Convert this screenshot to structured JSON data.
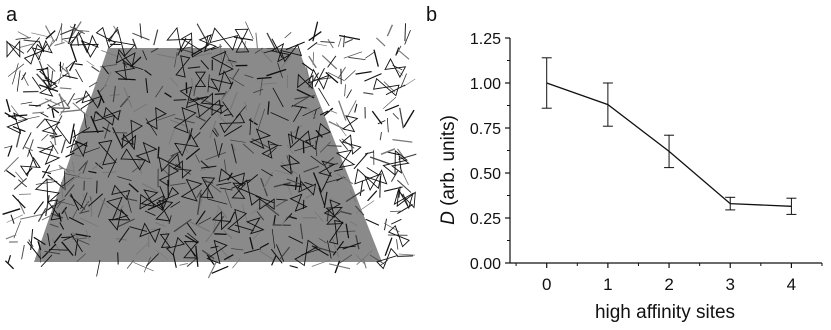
{
  "figure": {
    "panel_a_label": "a",
    "panel_b_label": "b",
    "fill_color": "#8a8a8a",
    "stroke_color": "#111111"
  },
  "chart_data": {
    "type": "line",
    "x": [
      0,
      1,
      2,
      3,
      4
    ],
    "series": [
      {
        "values": [
          1.0,
          0.88,
          0.62,
          0.33,
          0.315
        ],
        "errors": [
          0.14,
          0.12,
          0.09,
          0.035,
          0.045
        ]
      }
    ],
    "xlabel": "high affinity sites",
    "ylabel_italic": "D",
    "ylabel_rest": " (arb. units)",
    "xlim": [
      -0.6,
      4.5
    ],
    "ylim": [
      0,
      1.25
    ],
    "xticks": [
      "0",
      "1",
      "2",
      "3",
      "4"
    ],
    "yticks": [
      "0.00",
      "0.25",
      "0.50",
      "0.75",
      "1.00",
      "1.25"
    ],
    "grid": false
  }
}
